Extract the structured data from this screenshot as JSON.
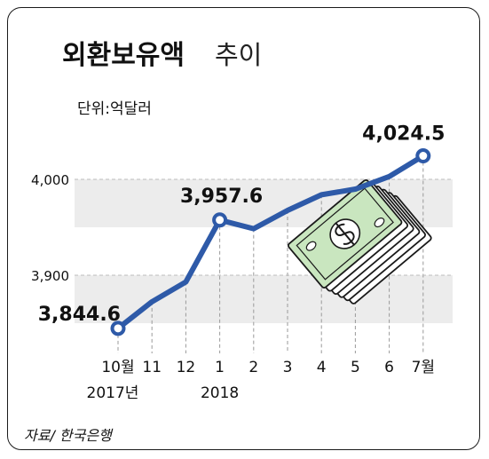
{
  "title_bold": "외환보유액",
  "title_light": "추이",
  "unit": "단위:억달러",
  "source": "자료/ 한국은행",
  "colors": {
    "line": "#2e5aa8",
    "band": "#ececec",
    "grid": "#bdbdbd",
    "text": "#111111"
  },
  "icon": "money-stack-icon",
  "chart_data": {
    "type": "line",
    "title": "외환보유액 추이",
    "ylabel": "단위:억달러",
    "categories": [
      "10월",
      "11",
      "12",
      "1",
      "2",
      "3",
      "4",
      "5",
      "6",
      "7월"
    ],
    "year_labels": [
      {
        "index": 0,
        "text": "2017년"
      },
      {
        "index": 3,
        "text": "2018"
      }
    ],
    "values": [
      3844.6,
      3872.3,
      3893.0,
      3957.6,
      3948.5,
      3967.6,
      3983.9,
      3989.8,
      4003.0,
      4024.5
    ],
    "data_labels": [
      {
        "index": 0,
        "text": "3,844.6"
      },
      {
        "index": 3,
        "text": "3,957.6"
      },
      {
        "index": 9,
        "text": "4,024.5"
      }
    ],
    "yticks": [
      {
        "value": 3900,
        "label": "3,900"
      },
      {
        "value": 4000,
        "label": "4,000"
      }
    ],
    "ylim": [
      3850,
      4050
    ],
    "grid": true
  }
}
